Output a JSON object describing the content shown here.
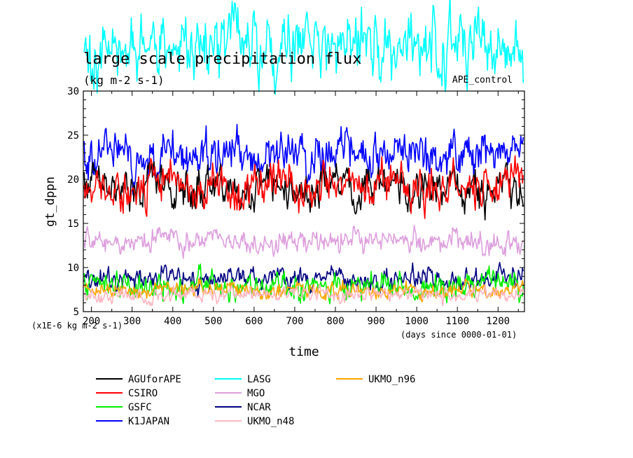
{
  "chart_data": {
    "type": "line",
    "title": "large scale precipitation flux",
    "subtitle": "(kg m-2 s-1)",
    "label_right": "APE_control",
    "xlabel": "time",
    "ylabel": "gt_dppn",
    "x_units_note": "(days since 0000-01-01)",
    "y_units_note": "(x1E-6 kg m-2 s-1)",
    "xlim": [
      180,
      1265
    ],
    "ylim": [
      5,
      30
    ],
    "x_ticks": [
      200,
      300,
      400,
      500,
      600,
      700,
      800,
      900,
      1000,
      1100,
      1200
    ],
    "x_tick_labels": [
      "200",
      "300",
      "400",
      "500",
      "600",
      "700",
      "800",
      "900",
      "1000",
      "1100",
      "1200"
    ],
    "y_ticks": [
      5,
      10,
      15,
      20,
      25,
      30
    ],
    "y_tick_labels": [
      "5",
      "10",
      "15",
      "20",
      "25",
      "30"
    ],
    "series": [
      {
        "name": "AGUforAPE",
        "color": "#000000",
        "mean": 19.0,
        "amp": 1.6,
        "seed": 11
      },
      {
        "name": "CSIRO",
        "color": "#ff0000",
        "mean": 19.3,
        "amp": 1.6,
        "seed": 23
      },
      {
        "name": "GSFC",
        "color": "#00ee00",
        "mean": 8.0,
        "amp": 1.0,
        "seed": 37
      },
      {
        "name": "K1JAPAN",
        "color": "#0000ff",
        "mean": 22.8,
        "amp": 1.7,
        "seed": 41
      },
      {
        "name": "LASG",
        "color": "#00ffff",
        "mean": 35.0,
        "amp": 2.6,
        "seed": 53
      },
      {
        "name": "MGO",
        "color": "#dda0dd",
        "mean": 13.0,
        "amp": 0.9,
        "seed": 67
      },
      {
        "name": "NCAR",
        "color": "#000080",
        "mean": 8.6,
        "amp": 0.9,
        "seed": 79
      },
      {
        "name": "UKMO_n48",
        "color": "#ffb6c1",
        "mean": 7.0,
        "amp": 0.6,
        "seed": 83
      },
      {
        "name": "UKMO_n96",
        "color": "#ffa500",
        "mean": 7.5,
        "amp": 0.6,
        "seed": 97
      }
    ]
  }
}
